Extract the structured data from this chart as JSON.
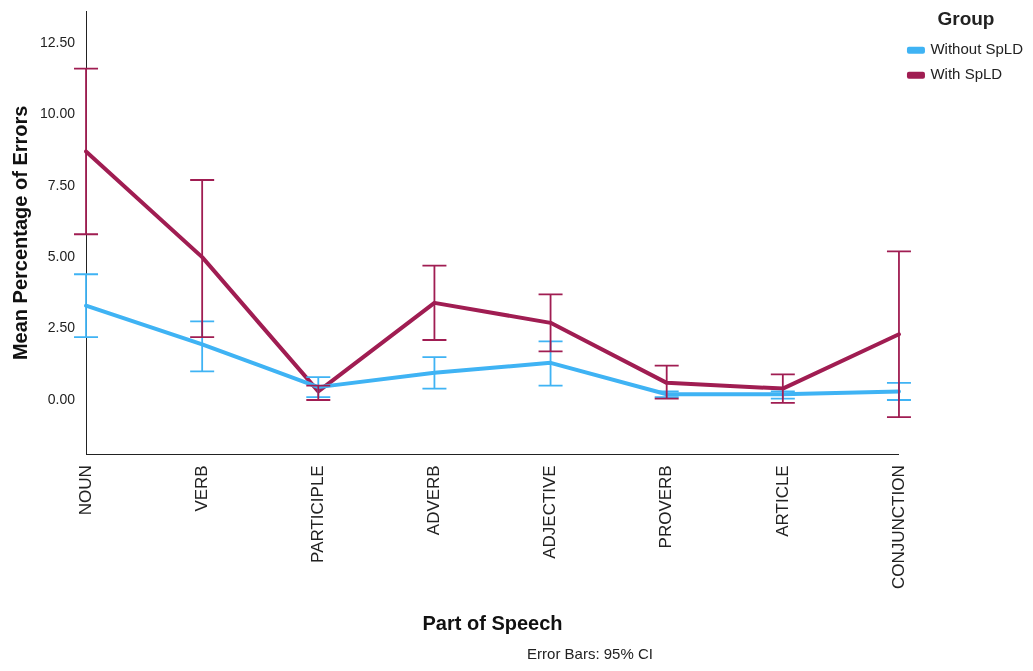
{
  "chart_data": {
    "type": "line",
    "xlabel": "Part of Speech",
    "ylabel": "Mean Percentage of Errors",
    "legend_title": "Group",
    "annotations": [
      "Error Bars: 95% CI"
    ],
    "categories": [
      "NOUN",
      "VERB",
      "PARTICIPLE",
      "ADVERB",
      "ADJECTIVE",
      "PROVERB",
      "ARTICLE",
      "CONJUNCTION"
    ],
    "series": [
      {
        "name": "Without SpLD",
        "color": "#3fb3f4",
        "values": [
          3.3,
          1.95,
          0.45,
          0.95,
          1.3,
          0.2,
          0.2,
          0.3
        ],
        "errors": [
          [
            2.2,
            4.4
          ],
          [
            1.0,
            2.75
          ],
          [
            0.1,
            0.8
          ],
          [
            0.4,
            1.5
          ],
          [
            0.5,
            2.05
          ],
          [
            0.1,
            0.3
          ],
          [
            0.05,
            0.3
          ],
          [
            0.0,
            0.6
          ]
        ]
      },
      {
        "name": "With SpLD",
        "color": "#a01d52",
        "values": [
          8.7,
          5.0,
          0.3,
          3.4,
          2.7,
          0.6,
          0.4,
          2.3
        ],
        "errors": [
          [
            5.8,
            11.6
          ],
          [
            2.2,
            7.7
          ],
          [
            0.0,
            0.5
          ],
          [
            2.1,
            4.7
          ],
          [
            1.7,
            3.7
          ],
          [
            0.05,
            1.2
          ],
          [
            -0.1,
            0.9
          ],
          [
            -0.6,
            5.2
          ]
        ]
      }
    ],
    "ylim": [
      -1.9,
      13.6
    ],
    "yticks": [
      {
        "value": 0,
        "label": "0.00"
      },
      {
        "value": 2.5,
        "label": "2.50"
      },
      {
        "value": 5,
        "label": "5.00"
      },
      {
        "value": 7.5,
        "label": "7.50"
      },
      {
        "value": 10,
        "label": "10.00"
      },
      {
        "value": 12.5,
        "label": "12.50"
      }
    ],
    "grid": false,
    "legend": "top right",
    "marker": "none",
    "line_style": "solid"
  }
}
